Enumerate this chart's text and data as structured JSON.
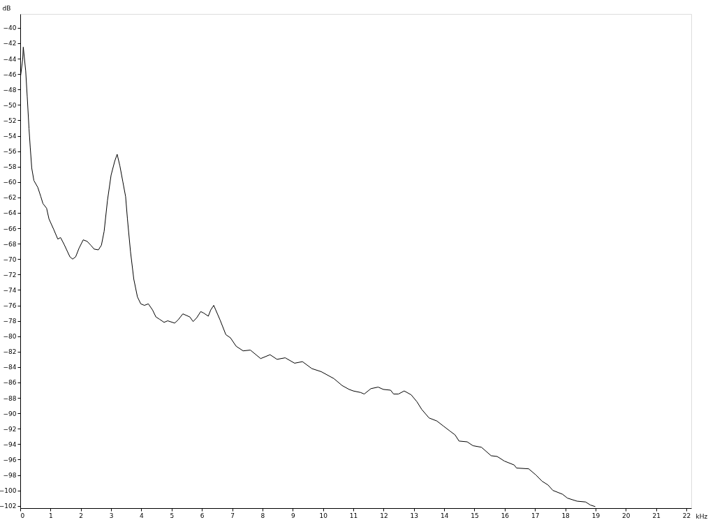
{
  "chart_data": {
    "type": "line",
    "xlabel": "kHz",
    "ylabel": "dB",
    "xlim": [
      0,
      22.16
    ],
    "ylim": [
      -102.3,
      -38.2
    ],
    "xticks": [
      0,
      1,
      2,
      3,
      4,
      5,
      6,
      7,
      8,
      9,
      10,
      11,
      12,
      13,
      14,
      15,
      16,
      17,
      18,
      19,
      20,
      21,
      22
    ],
    "yticks": [
      -40,
      -42,
      -44,
      -46,
      -48,
      -50,
      -52,
      -54,
      -56,
      -58,
      -60,
      -62,
      -64,
      -66,
      -68,
      -70,
      -72,
      -74,
      -76,
      -78,
      -80,
      -82,
      -84,
      -86,
      -88,
      -90,
      -92,
      -94,
      -96,
      -98,
      -100,
      -102
    ],
    "grid": false,
    "line_style": "solid",
    "marker": "none",
    "series": [
      {
        "color": "#000000",
        "x": [
          0,
          0.08,
          0.1,
          0.18,
          0.23,
          0.29,
          0.33,
          0.38,
          0.45,
          0.58,
          0.68,
          0.75,
          0.87,
          0.95,
          1.1,
          1.24,
          1.33,
          1.45,
          1.64,
          1.73,
          1.83,
          1.94,
          2.08,
          2.21,
          2.33,
          2.44,
          2.58,
          2.68,
          2.77,
          2.88,
          3.0,
          3.12,
          3.2,
          3.29,
          3.39,
          3.48,
          3.54,
          3.64,
          3.75,
          3.87,
          3.98,
          4.1,
          4.23,
          4.37,
          4.48,
          4.6,
          4.75,
          4.87,
          5.1,
          5.21,
          5.37,
          5.6,
          5.71,
          5.83,
          5.96,
          6.06,
          6.21,
          6.29,
          6.39,
          6.6,
          6.79,
          6.94,
          7.13,
          7.36,
          7.6,
          7.94,
          8.25,
          8.48,
          8.75,
          9.06,
          9.32,
          9.63,
          9.94,
          10.36,
          10.63,
          10.86,
          11.0,
          11.24,
          11.36,
          11.58,
          11.82,
          11.99,
          12.23,
          12.33,
          12.49,
          12.68,
          12.91,
          13.1,
          13.26,
          13.5,
          13.76,
          13.99,
          14.19,
          14.36,
          14.49,
          14.76,
          14.95,
          15.23,
          15.55,
          15.75,
          15.99,
          16.31,
          16.39,
          16.79,
          17.03,
          17.23,
          17.43,
          17.59,
          17.91,
          18.07,
          18.39,
          18.67,
          18.83,
          18.99
        ],
        "values": [
          -46.6,
          -44.1,
          -42.5,
          -45.6,
          -48.9,
          -53.1,
          -55.5,
          -58.2,
          -59.8,
          -60.7,
          -61.9,
          -62.8,
          -63.4,
          -64.8,
          -66.1,
          -67.4,
          -67.2,
          -68.1,
          -69.7,
          -70.0,
          -69.7,
          -68.6,
          -67.5,
          -67.7,
          -68.2,
          -68.7,
          -68.8,
          -68.2,
          -66.4,
          -62.4,
          -59.1,
          -57.3,
          -56.4,
          -57.9,
          -60.0,
          -61.9,
          -64.8,
          -69.0,
          -72.6,
          -74.9,
          -75.8,
          -76.0,
          -75.8,
          -76.6,
          -77.5,
          -77.8,
          -78.2,
          -78.0,
          -78.3,
          -77.9,
          -77.1,
          -77.5,
          -78.1,
          -77.6,
          -76.8,
          -77.0,
          -77.4,
          -76.6,
          -76.0,
          -77.9,
          -79.8,
          -80.2,
          -81.3,
          -81.9,
          -81.8,
          -82.9,
          -82.4,
          -83.0,
          -82.8,
          -83.5,
          -83.3,
          -84.2,
          -84.6,
          -85.5,
          -86.4,
          -86.9,
          -87.1,
          -87.3,
          -87.5,
          -86.8,
          -86.6,
          -86.9,
          -87.0,
          -87.5,
          -87.5,
          -87.1,
          -87.6,
          -88.5,
          -89.5,
          -90.6,
          -91.0,
          -91.7,
          -92.3,
          -92.8,
          -93.6,
          -93.7,
          -94.2,
          -94.4,
          -95.5,
          -95.6,
          -96.2,
          -96.7,
          -97.1,
          -97.2,
          -98.0,
          -98.8,
          -99.3,
          -100.0,
          -100.5,
          -101.0,
          -101.4,
          -101.5,
          -101.9,
          -102.1
        ]
      }
    ]
  }
}
